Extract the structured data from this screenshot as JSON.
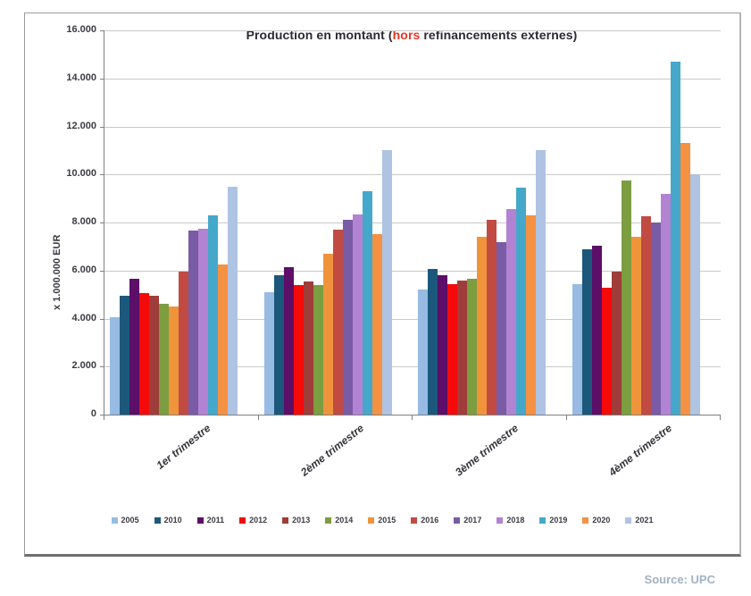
{
  "title": {
    "prefix": "Production en montant (",
    "highlight": "hors",
    "suffix": " refinancements externes)"
  },
  "source": "Source: UPC",
  "y_axis": {
    "label": "x 1.000.000  EUR",
    "ticks": [
      "16.000",
      "14.000",
      "12.000",
      "10.000",
      "8.000",
      "6.000",
      "4.000",
      "2.000",
      "0"
    ]
  },
  "colors": {
    "title_text": "#2b2933",
    "title_highlight": "#ee3326",
    "gridline": "#c9c9c9",
    "axis": "#808080",
    "source_text": "#a4b0c4"
  },
  "chart_data": {
    "type": "bar",
    "title": "Production en montant (hors refinancements externes)",
    "xlabel": "",
    "ylabel": "x 1.000.000 EUR",
    "ylim": [
      0,
      16000
    ],
    "grid": true,
    "legend_position": "bottom",
    "categories": [
      "1er trimestre",
      "2ème trimestre",
      "3ème trimestre",
      "4ème trimestre"
    ],
    "series": [
      {
        "name": "2005",
        "color": "#97bbe3",
        "values": [
          4050,
          5100,
          5200,
          5450
        ]
      },
      {
        "name": "2010",
        "color": "#1b587b",
        "values": [
          4950,
          5800,
          6050,
          6900
        ]
      },
      {
        "name": "2011",
        "color": "#5c0e68",
        "values": [
          5650,
          6150,
          5800,
          7050
        ]
      },
      {
        "name": "2012",
        "color": "#f50a0a",
        "values": [
          5050,
          5400,
          5450,
          5300
        ]
      },
      {
        "name": "2013",
        "color": "#9e3d39",
        "values": [
          4950,
          5550,
          5600,
          5950
        ]
      },
      {
        "name": "2014",
        "color": "#7c9d40",
        "values": [
          4600,
          5400,
          5650,
          9750
        ]
      },
      {
        "name": "2015",
        "color": "#f0943c",
        "values": [
          4500,
          6700,
          7400,
          7400
        ]
      },
      {
        "name": "2016",
        "color": "#c14b43",
        "values": [
          5950,
          7700,
          8100,
          8250
        ]
      },
      {
        "name": "2017",
        "color": "#7a5ba5",
        "values": [
          7650,
          8100,
          7200,
          8000
        ]
      },
      {
        "name": "2018",
        "color": "#b383d3",
        "values": [
          7750,
          8350,
          8550,
          9200
        ]
      },
      {
        "name": "2019",
        "color": "#45a8cb",
        "values": [
          8300,
          9300,
          9450,
          14700
        ]
      },
      {
        "name": "2020",
        "color": "#f59142",
        "values": [
          6250,
          7500,
          8300,
          11300
        ]
      },
      {
        "name": "2021",
        "color": "#afc3e3",
        "values": [
          9500,
          11000,
          11000,
          10000
        ]
      }
    ]
  }
}
